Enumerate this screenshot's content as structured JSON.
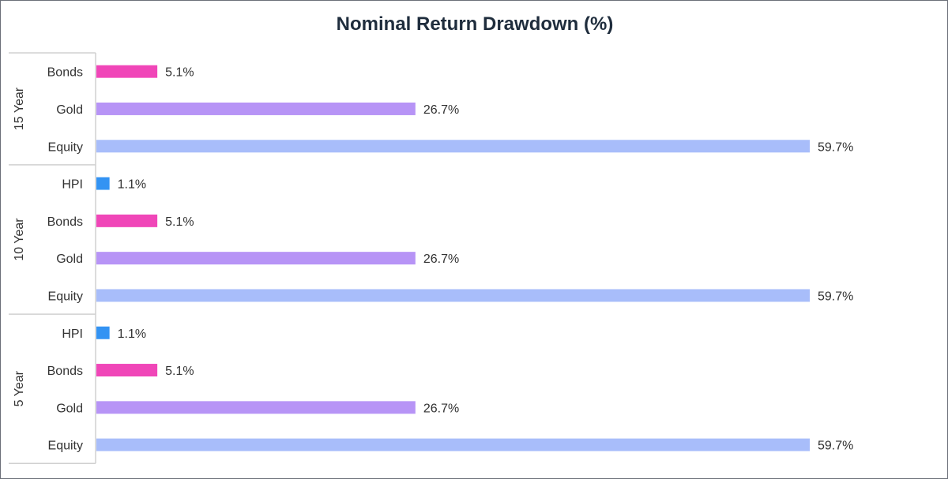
{
  "chart_data": {
    "type": "bar",
    "orientation": "horizontal",
    "title": "Nominal Return Drawdown (%)",
    "xlabel": "",
    "ylabel": "",
    "xlim": [
      0,
      60
    ],
    "grid": false,
    "legend": "none",
    "value_suffix": "%",
    "colors": {
      "Bonds": "#f046b8",
      "Gold": "#b794f6",
      "Equity": "#a8bdfa",
      "HPI": "#3393f3"
    },
    "groups": [
      {
        "name": "15 Year",
        "items": [
          {
            "category": "Bonds",
            "value": 5.1,
            "label": "5.1%"
          },
          {
            "category": "Gold",
            "value": 26.7,
            "label": "26.7%"
          },
          {
            "category": "Equity",
            "value": 59.7,
            "label": "59.7%"
          }
        ]
      },
      {
        "name": "10 Year",
        "items": [
          {
            "category": "HPI",
            "value": 1.1,
            "label": "1.1%"
          },
          {
            "category": "Bonds",
            "value": 5.1,
            "label": "5.1%"
          },
          {
            "category": "Gold",
            "value": 26.7,
            "label": "26.7%"
          },
          {
            "category": "Equity",
            "value": 59.7,
            "label": "59.7%"
          }
        ]
      },
      {
        "name": "5 Year",
        "items": [
          {
            "category": "HPI",
            "value": 1.1,
            "label": "1.1%"
          },
          {
            "category": "Bonds",
            "value": 5.1,
            "label": "5.1%"
          },
          {
            "category": "Gold",
            "value": 26.7,
            "label": "26.7%"
          },
          {
            "category": "Equity",
            "value": 59.7,
            "label": "59.7%"
          }
        ]
      }
    ]
  }
}
